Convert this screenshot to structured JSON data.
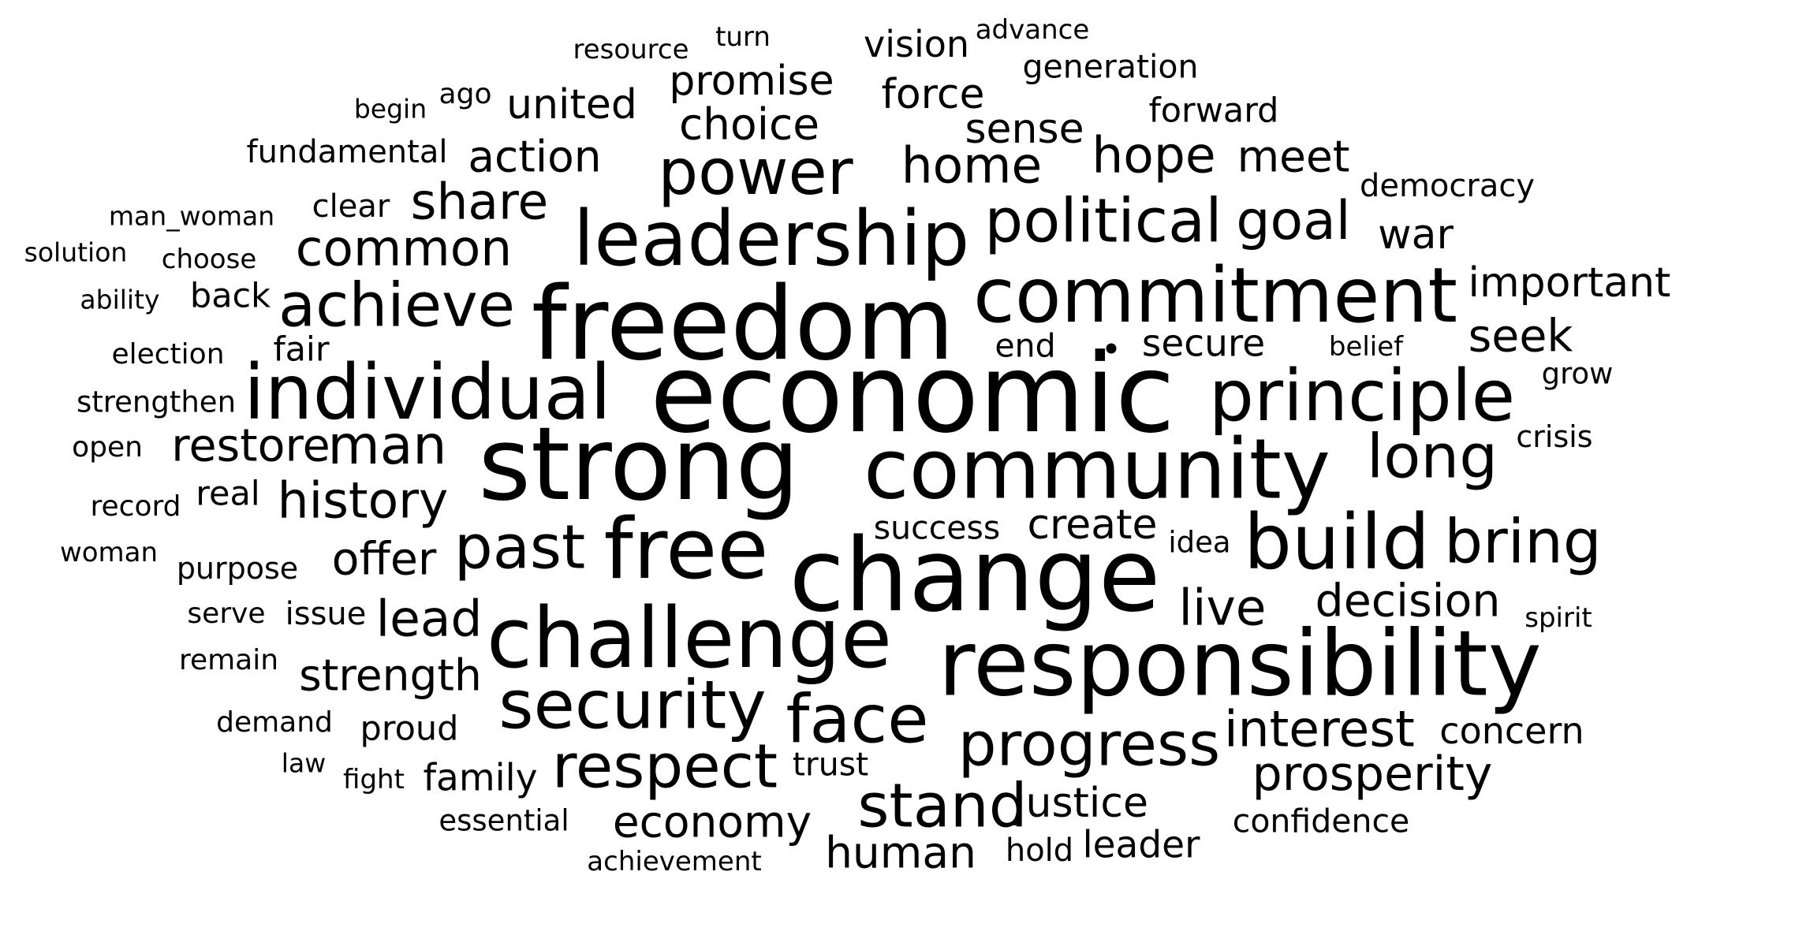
{
  "cloud": {
    "words": [
      {
        "text": "resource"
      },
      {
        "text": "turn"
      },
      {
        "text": "vision"
      },
      {
        "text": "advance"
      },
      {
        "text": "generation"
      },
      {
        "text": "promise"
      },
      {
        "text": "begin"
      },
      {
        "text": "ago"
      },
      {
        "text": "united"
      },
      {
        "text": "force"
      },
      {
        "text": "forward"
      },
      {
        "text": "choice"
      },
      {
        "text": "sense"
      },
      {
        "text": "fundamental"
      },
      {
        "text": "action"
      },
      {
        "text": "power"
      },
      {
        "text": "home"
      },
      {
        "text": "hope"
      },
      {
        "text": "meet"
      },
      {
        "text": "democracy"
      },
      {
        "text": "man_woman"
      },
      {
        "text": "clear"
      },
      {
        "text": "share"
      },
      {
        "text": "leadership"
      },
      {
        "text": "political"
      },
      {
        "text": "goal"
      },
      {
        "text": "war"
      },
      {
        "text": "solution"
      },
      {
        "text": "choose"
      },
      {
        "text": "common"
      },
      {
        "text": "important"
      },
      {
        "text": "ability"
      },
      {
        "text": "back"
      },
      {
        "text": "achieve"
      },
      {
        "text": "freedom"
      },
      {
        "text": "commitment"
      },
      {
        "text": "seek"
      },
      {
        "text": "election"
      },
      {
        "text": "fair"
      },
      {
        "text": "end"
      },
      {
        "text": "secure"
      },
      {
        "text": "belief"
      },
      {
        "text": "grow"
      },
      {
        "text": "strengthen"
      },
      {
        "text": "individual"
      },
      {
        "text": "economic"
      },
      {
        "text": "principle"
      },
      {
        "text": "open"
      },
      {
        "text": "restore"
      },
      {
        "text": "man"
      },
      {
        "text": "strong"
      },
      {
        "text": "community"
      },
      {
        "text": "long"
      },
      {
        "text": "crisis"
      },
      {
        "text": "record"
      },
      {
        "text": "real"
      },
      {
        "text": "history"
      },
      {
        "text": "success"
      },
      {
        "text": "create"
      },
      {
        "text": "idea"
      },
      {
        "text": "build"
      },
      {
        "text": "bring"
      },
      {
        "text": "woman"
      },
      {
        "text": "purpose"
      },
      {
        "text": "offer"
      },
      {
        "text": "past"
      },
      {
        "text": "free"
      },
      {
        "text": "change"
      },
      {
        "text": "serve"
      },
      {
        "text": "issue"
      },
      {
        "text": "lead"
      },
      {
        "text": "live"
      },
      {
        "text": "decision"
      },
      {
        "text": "spirit"
      },
      {
        "text": "challenge"
      },
      {
        "text": "remain"
      },
      {
        "text": "strength"
      },
      {
        "text": "responsibility"
      },
      {
        "text": "security"
      },
      {
        "text": "face"
      },
      {
        "text": "demand"
      },
      {
        "text": "proud"
      },
      {
        "text": "interest"
      },
      {
        "text": "concern"
      },
      {
        "text": "progress"
      },
      {
        "text": "law"
      },
      {
        "text": "fight"
      },
      {
        "text": "family"
      },
      {
        "text": "respect"
      },
      {
        "text": "trust"
      },
      {
        "text": "prosperity"
      },
      {
        "text": "stand"
      },
      {
        "text": "justice"
      },
      {
        "text": "essential"
      },
      {
        "text": "economy"
      },
      {
        "text": "confidence"
      },
      {
        "text": "achievement"
      },
      {
        "text": "human"
      },
      {
        "text": "hold"
      },
      {
        "text": "leader"
      }
    ]
  }
}
